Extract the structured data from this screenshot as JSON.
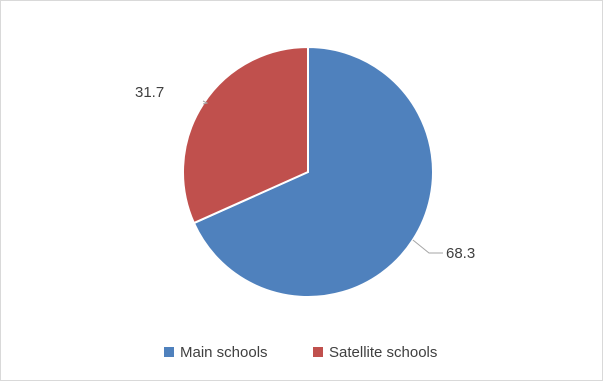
{
  "chart_data": {
    "type": "pie",
    "title": "",
    "categories": [
      "Main schools",
      "Satellite schools"
    ],
    "values": [
      68.3,
      31.7
    ],
    "colors": [
      "#4F81BD",
      "#C0504D"
    ],
    "data_labels": [
      "68.3",
      "31.7"
    ],
    "legend": {
      "position": "bottom",
      "entries": [
        "Main schools",
        "Satellite schools"
      ]
    },
    "start_angle_deg": 0,
    "direction": "clockwise"
  }
}
